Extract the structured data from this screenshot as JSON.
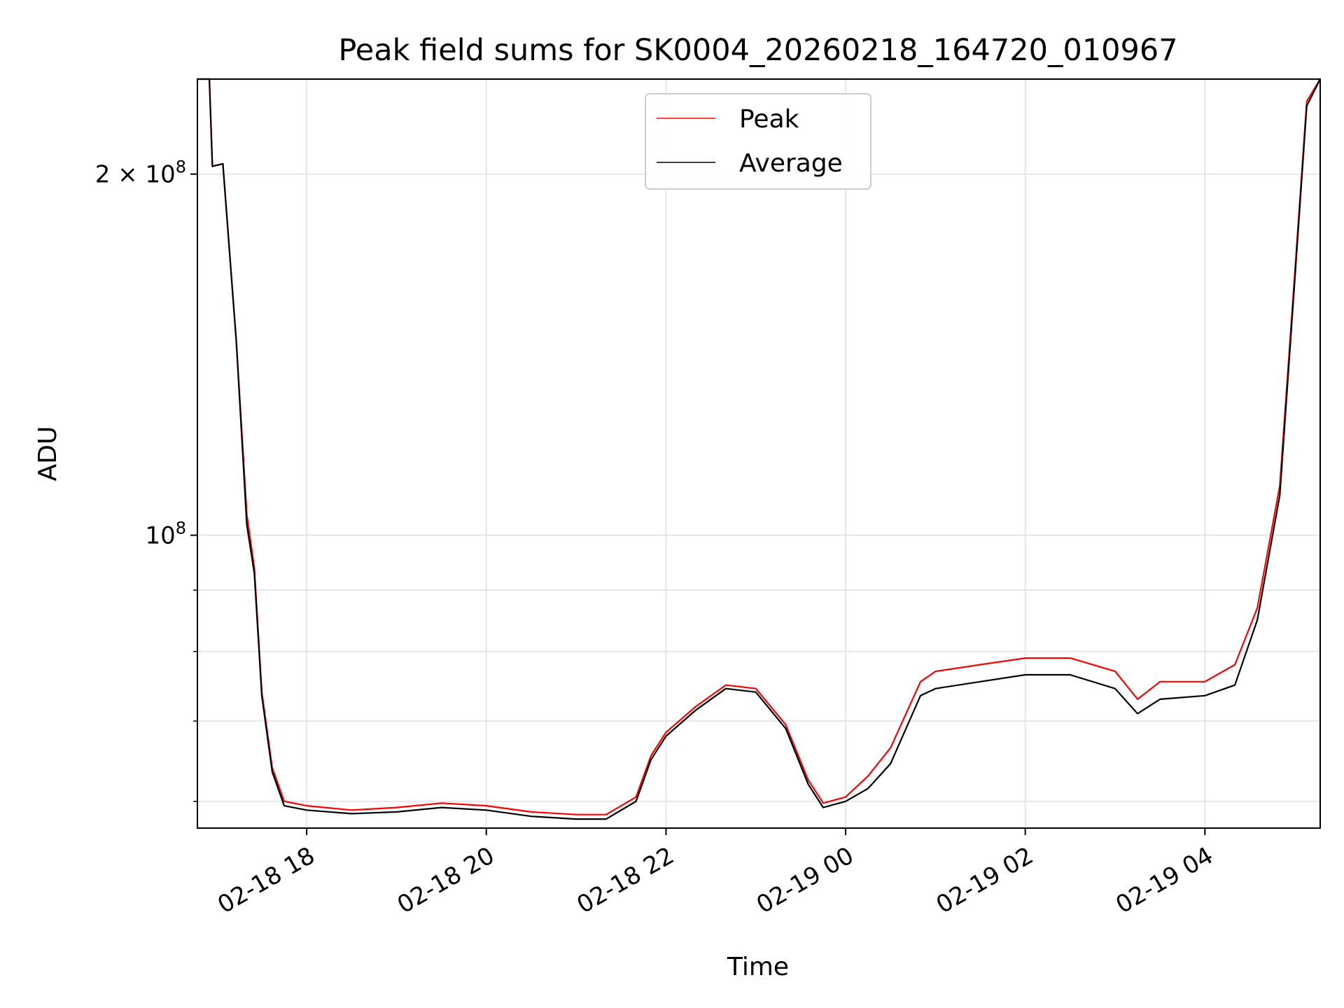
{
  "chart_data": {
    "type": "line",
    "title": "Peak field sums for SK0004_20260218_164720_010967",
    "xlabel": "Time",
    "ylabel": "ADU",
    "yscale": "log",
    "xlim": [
      "2026-02-18 16:47",
      "2026-02-19 05:17"
    ],
    "ylim": [
      57000000,
      240000000
    ],
    "x_ticks": [
      {
        "value": "2026-02-18 18:00",
        "label": "02-18 18"
      },
      {
        "value": "2026-02-18 20:00",
        "label": "02-18 20"
      },
      {
        "value": "2026-02-18 22:00",
        "label": "02-18 22"
      },
      {
        "value": "2026-02-19 00:00",
        "label": "02-19 00"
      },
      {
        "value": "2026-02-19 02:00",
        "label": "02-19 02"
      },
      {
        "value": "2026-02-19 04:00",
        "label": "02-19 04"
      }
    ],
    "y_ticks": [
      {
        "value": 100000000,
        "label_base": "10",
        "label_exp": "8",
        "label_coef": ""
      },
      {
        "value": 200000000,
        "label_base": "10",
        "label_exp": "8",
        "label_coef": "2 × "
      }
    ],
    "y_minor_ticks": [
      60000000,
      70000000,
      80000000,
      90000000
    ],
    "grid": true,
    "legend_position": "top-center",
    "series": [
      {
        "name": "Peak",
        "color": "#ff0000",
        "x": [
          "2026-02-18 16:47",
          "2026-02-18 16:55",
          "2026-02-18 16:57",
          "2026-02-18 17:04",
          "2026-02-18 17:13",
          "2026-02-18 17:20",
          "2026-02-18 17:25",
          "2026-02-18 17:30",
          "2026-02-18 17:37",
          "2026-02-18 17:45",
          "2026-02-18 18:00",
          "2026-02-18 18:30",
          "2026-02-18 19:00",
          "2026-02-18 19:30",
          "2026-02-18 20:00",
          "2026-02-18 20:30",
          "2026-02-18 21:00",
          "2026-02-18 21:20",
          "2026-02-18 21:40",
          "2026-02-18 21:50",
          "2026-02-18 22:00",
          "2026-02-18 22:20",
          "2026-02-18 22:40",
          "2026-02-18 23:00",
          "2026-02-18 23:20",
          "2026-02-18 23:35",
          "2026-02-18 23:45",
          "2026-02-19 00:00",
          "2026-02-19 00:15",
          "2026-02-19 00:30",
          "2026-02-19 00:50",
          "2026-02-19 01:00",
          "2026-02-19 01:30",
          "2026-02-19 02:00",
          "2026-02-19 02:30",
          "2026-02-19 03:00",
          "2026-02-19 03:15",
          "2026-02-19 03:30",
          "2026-02-19 04:00",
          "2026-02-19 04:20",
          "2026-02-19 04:35",
          "2026-02-19 04:50",
          "2026-02-19 05:00",
          "2026-02-19 05:08",
          "2026-02-19 05:17"
        ],
        "values": [
          240000000,
          240000000,
          203000000,
          204000000,
          145000000,
          104000000,
          94000000,
          74000000,
          64000000,
          60000000,
          59500000,
          59000000,
          59300000,
          59800000,
          59500000,
          58800000,
          58500000,
          58500000,
          60500000,
          65500000,
          68500000,
          72000000,
          75000000,
          74500000,
          69500000,
          62500000,
          59800000,
          60500000,
          63000000,
          66500000,
          75500000,
          77000000,
          78000000,
          79000000,
          79000000,
          77000000,
          73000000,
          75500000,
          75500000,
          78000000,
          87000000,
          110000000,
          165000000,
          230000000,
          240000000
        ]
      },
      {
        "name": "Average",
        "color": "#000000",
        "x": [
          "2026-02-18 16:47",
          "2026-02-18 16:55",
          "2026-02-18 16:57",
          "2026-02-18 17:04",
          "2026-02-18 17:13",
          "2026-02-18 17:20",
          "2026-02-18 17:25",
          "2026-02-18 17:30",
          "2026-02-18 17:37",
          "2026-02-18 17:45",
          "2026-02-18 18:00",
          "2026-02-18 18:30",
          "2026-02-18 19:00",
          "2026-02-18 19:30",
          "2026-02-18 20:00",
          "2026-02-18 20:30",
          "2026-02-18 21:00",
          "2026-02-18 21:20",
          "2026-02-18 21:40",
          "2026-02-18 21:50",
          "2026-02-18 22:00",
          "2026-02-18 22:20",
          "2026-02-18 22:40",
          "2026-02-18 23:00",
          "2026-02-18 23:20",
          "2026-02-18 23:35",
          "2026-02-18 23:45",
          "2026-02-19 00:00",
          "2026-02-19 00:15",
          "2026-02-19 00:30",
          "2026-02-19 00:50",
          "2026-02-19 01:00",
          "2026-02-19 01:30",
          "2026-02-19 02:00",
          "2026-02-19 02:30",
          "2026-02-19 03:00",
          "2026-02-19 03:15",
          "2026-02-19 03:30",
          "2026-02-19 04:00",
          "2026-02-19 04:20",
          "2026-02-19 04:35",
          "2026-02-19 04:50",
          "2026-02-19 05:00",
          "2026-02-19 05:08",
          "2026-02-19 05:17"
        ],
        "values": [
          240000000,
          240000000,
          203000000,
          204000000,
          145000000,
          102000000,
          93000000,
          73500000,
          63500000,
          59500000,
          59000000,
          58600000,
          58800000,
          59300000,
          59000000,
          58300000,
          58000000,
          58000000,
          60000000,
          65000000,
          68000000,
          71500000,
          74500000,
          74000000,
          69000000,
          62000000,
          59300000,
          60000000,
          61500000,
          64500000,
          73500000,
          74500000,
          75500000,
          76500000,
          76500000,
          74500000,
          71000000,
          73000000,
          73500000,
          75000000,
          85000000,
          108000000,
          163000000,
          228000000,
          240000000
        ]
      }
    ]
  }
}
